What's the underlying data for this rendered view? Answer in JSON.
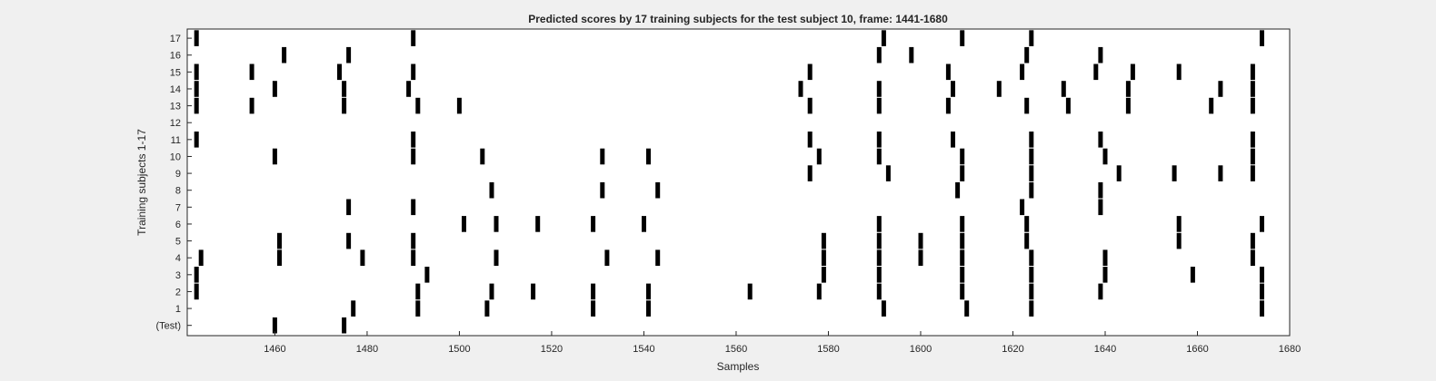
{
  "chart_data": {
    "type": "raster",
    "title": "Predicted scores by 17 training subjects for the test subject 10, frame: 1441-1680",
    "xlabel": "Samples",
    "ylabel": "Training subjects 1-17",
    "xlim": [
      1441,
      1680
    ],
    "x_ticks": [
      1460,
      1480,
      1500,
      1520,
      1540,
      1560,
      1580,
      1600,
      1620,
      1640,
      1660,
      1680
    ],
    "row_labels": [
      "(Test)",
      "1",
      "2",
      "3",
      "4",
      "5",
      "6",
      "7",
      "8",
      "9",
      "10",
      "11",
      "12",
      "13",
      "14",
      "15",
      "16",
      "17"
    ],
    "grid": false,
    "mark_color": "#000000",
    "rows": [
      {
        "label": "(Test)",
        "x": [
          1460,
          1475
        ]
      },
      {
        "label": "1",
        "x": [
          1477,
          1491,
          1506,
          1529,
          1541,
          1592,
          1610,
          1624,
          1674
        ]
      },
      {
        "label": "2",
        "x": [
          1443,
          1491,
          1507,
          1516,
          1529,
          1541,
          1563,
          1578,
          1591,
          1609,
          1624,
          1639,
          1674
        ]
      },
      {
        "label": "3",
        "x": [
          1443,
          1493,
          1579,
          1591,
          1609,
          1624,
          1640,
          1659,
          1674
        ]
      },
      {
        "label": "4",
        "x": [
          1444,
          1461,
          1479,
          1490,
          1508,
          1532,
          1543,
          1579,
          1591,
          1600,
          1609,
          1624,
          1640,
          1672
        ]
      },
      {
        "label": "5",
        "x": [
          1461,
          1476,
          1490,
          1579,
          1591,
          1600,
          1609,
          1623,
          1656,
          1672
        ]
      },
      {
        "label": "6",
        "x": [
          1501,
          1508,
          1517,
          1529,
          1540,
          1591,
          1609,
          1623,
          1656,
          1674
        ]
      },
      {
        "label": "7",
        "x": [
          1476,
          1490,
          1622,
          1639
        ]
      },
      {
        "label": "8",
        "x": [
          1507,
          1531,
          1543,
          1608,
          1624,
          1639
        ]
      },
      {
        "label": "9",
        "x": [
          1576,
          1593,
          1609,
          1624,
          1643,
          1655,
          1665,
          1672
        ]
      },
      {
        "label": "10",
        "x": [
          1460,
          1490,
          1505,
          1531,
          1541,
          1578,
          1591,
          1609,
          1624,
          1640,
          1672
        ]
      },
      {
        "label": "11",
        "x": [
          1443,
          1490,
          1576,
          1591,
          1607,
          1624,
          1639,
          1672
        ]
      },
      {
        "label": "12",
        "x": []
      },
      {
        "label": "13",
        "x": [
          1443,
          1455,
          1475,
          1491,
          1500,
          1576,
          1591,
          1606,
          1623,
          1632,
          1645,
          1663,
          1672
        ]
      },
      {
        "label": "14",
        "x": [
          1443,
          1460,
          1475,
          1489,
          1574,
          1591,
          1607,
          1617,
          1631,
          1645,
          1665,
          1672
        ]
      },
      {
        "label": "15",
        "x": [
          1443,
          1455,
          1474,
          1490,
          1576,
          1606,
          1622,
          1638,
          1646,
          1656,
          1672
        ]
      },
      {
        "label": "16",
        "x": [
          1462,
          1476,
          1591,
          1598,
          1623,
          1639
        ]
      },
      {
        "label": "17",
        "x": [
          1443,
          1490,
          1592,
          1609,
          1624,
          1674
        ]
      }
    ]
  }
}
